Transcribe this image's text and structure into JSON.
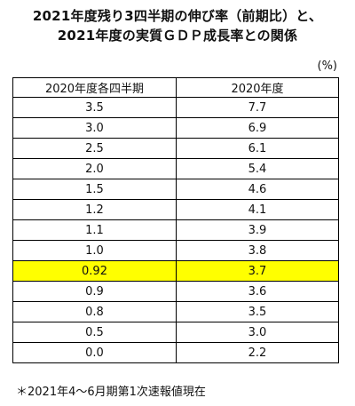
{
  "title": {
    "line1": "2021年度残り3四半期の伸び率（前期比）と、",
    "line2": "2021年度の実質ＧＤＰ成長率との関係"
  },
  "unit": "(%)",
  "table": {
    "headers": [
      "2020年度各四半期",
      "2020年度"
    ],
    "rows": [
      [
        "3.5",
        "7.7"
      ],
      [
        "3.0",
        "6.9"
      ],
      [
        "2.5",
        "6.1"
      ],
      [
        "2.0",
        "5.4"
      ],
      [
        "1.5",
        "4.6"
      ],
      [
        "1.2",
        "4.1"
      ],
      [
        "1.1",
        "3.9"
      ],
      [
        "1.0",
        "3.8"
      ],
      [
        "0.92",
        "3.7"
      ],
      [
        "0.9",
        "3.6"
      ],
      [
        "0.8",
        "3.5"
      ],
      [
        "0.5",
        "3.0"
      ],
      [
        "0.0",
        "2.2"
      ]
    ],
    "highlight_row": 8,
    "highlight_color": "#ffff00"
  },
  "footnote": "＊2021年4～6月期第1次速報値現在"
}
